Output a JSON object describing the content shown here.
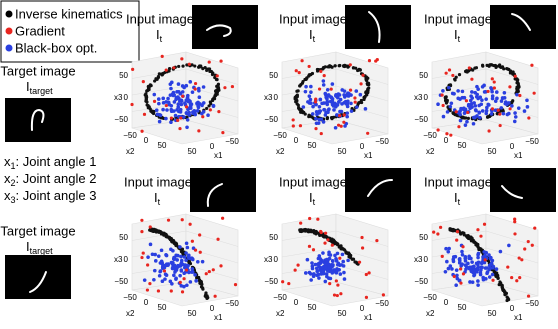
{
  "legend": [
    "Inverse kinematics",
    "Gradient",
    "Black-box opt."
  ],
  "joint_labels": [
    {
      "symbol": "x",
      "sub": "1",
      "text": ": Joint angle 1"
    },
    {
      "symbol": "x",
      "sub": "2",
      "text": ": Joint angle 2"
    },
    {
      "symbol": "x",
      "sub": "3",
      "text": ": Joint angle 3"
    }
  ],
  "targets": [
    {
      "label": "Target image",
      "symbol": "I",
      "sub": "target"
    },
    {
      "label": "Target image",
      "symbol": "I",
      "sub": "target"
    }
  ],
  "panels": [
    {
      "input": {
        "label": "Input image",
        "symbol": "I",
        "sub": "t"
      },
      "x3": "x3",
      "x2": "x2",
      "x1": "x1",
      "x3_ticks": [
        "50",
        "0",
        "−50"
      ],
      "x2_ticks": [
        "−50",
        "0",
        "50"
      ],
      "x1_ticks": [
        "50",
        "0",
        "−50"
      ]
    },
    {
      "input": {
        "label": "Input image",
        "symbol": "I",
        "sub": "t"
      },
      "x3": "x3",
      "x2": "x2",
      "x1": "x1",
      "x3_ticks": [
        "50",
        "0",
        "−50"
      ],
      "x2_ticks": [
        "−50",
        "0",
        "50"
      ],
      "x1_ticks": [
        "50",
        "0",
        "−50"
      ]
    },
    {
      "input": {
        "label": "Input image",
        "symbol": "I",
        "sub": "t"
      },
      "x3": "x3",
      "x2": "x2",
      "x1": "x1",
      "x3_ticks": [
        "50",
        "0",
        "−50"
      ],
      "x2_ticks": [
        "−50",
        "0",
        "50"
      ],
      "x1_ticks": [
        "50",
        "0",
        "−50"
      ]
    },
    {
      "input": {
        "label": "Input image",
        "symbol": "I",
        "sub": "t"
      },
      "x3": "x3",
      "x2": "x2",
      "x1": "x1",
      "x3_ticks": [
        "50",
        "0",
        "−50"
      ],
      "x2_ticks": [
        "−50",
        "0",
        "50"
      ],
      "x1_ticks": [
        "50",
        "0",
        "−50"
      ]
    },
    {
      "input": {
        "label": "Input image",
        "symbol": "I",
        "sub": "t"
      },
      "x3": "x3",
      "x2": "x2",
      "x1": "x1",
      "x3_ticks": [
        "50",
        "0",
        "−50"
      ],
      "x2_ticks": [
        "−50",
        "0",
        "50"
      ],
      "x1_ticks": [
        "50",
        "0",
        "−50"
      ]
    },
    {
      "input": {
        "label": "Input image",
        "symbol": "I",
        "sub": "t"
      },
      "x3": "x3",
      "x2": "x2",
      "x1": "x1",
      "x3_ticks": [
        "50",
        "0",
        "−50"
      ],
      "x2_ticks": [
        "−50",
        "0",
        "50"
      ],
      "x1_ticks": [
        "50",
        "0",
        "−50"
      ]
    }
  ]
}
